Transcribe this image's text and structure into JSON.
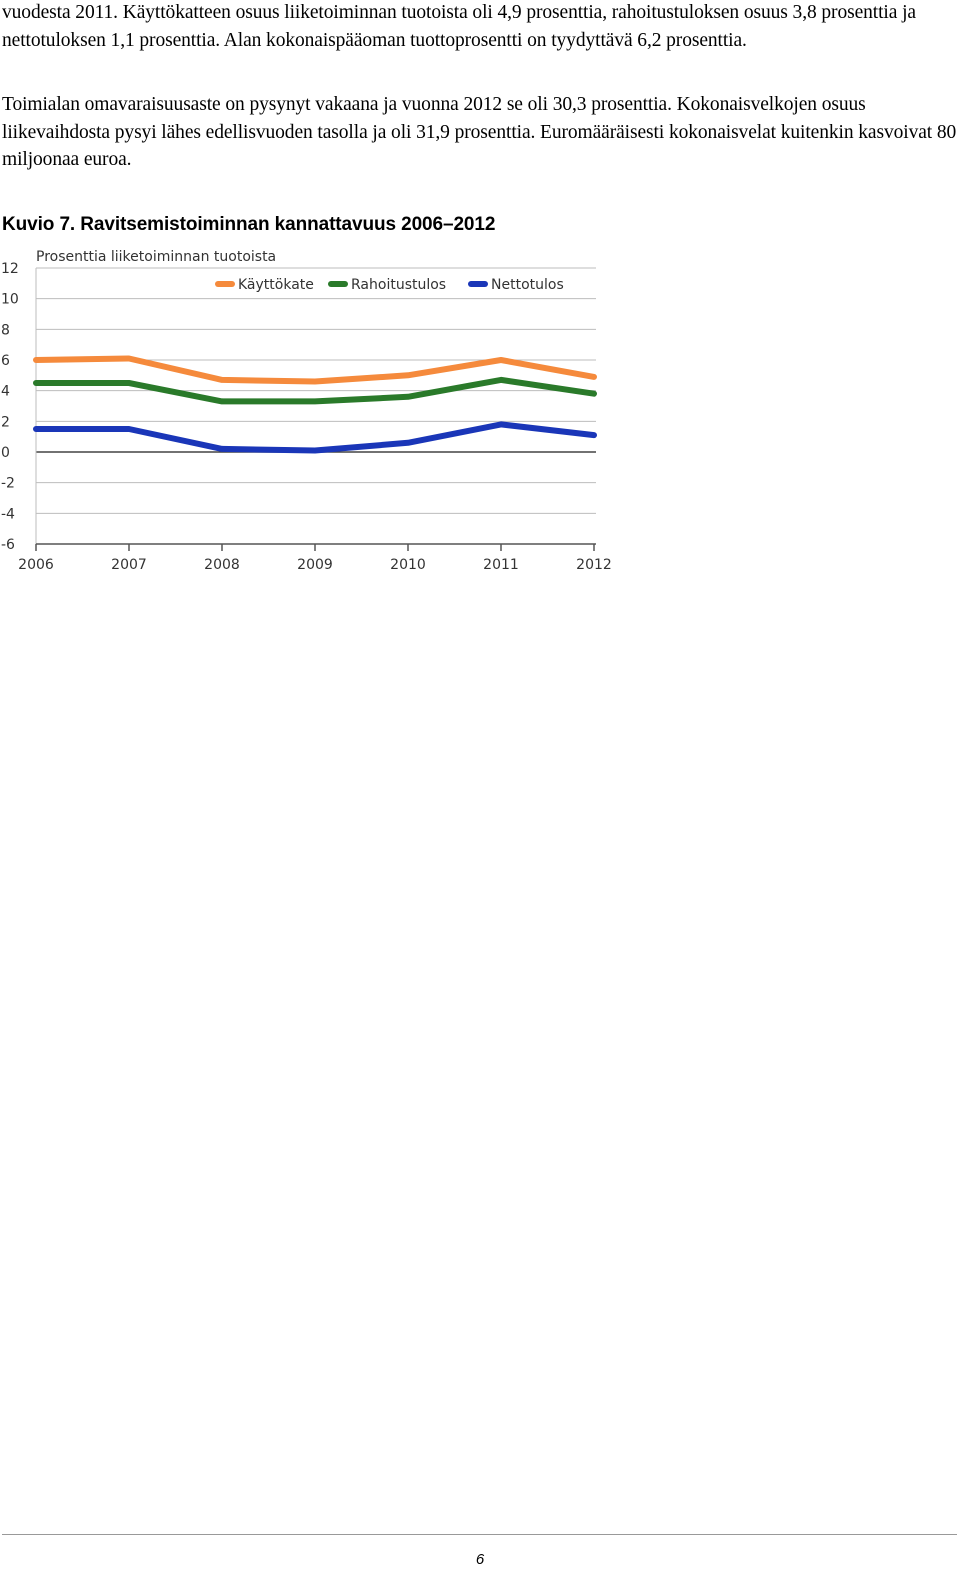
{
  "document": {
    "paragraphs": [
      "vuodesta 2011. Käyttökatteen osuus liiketoiminnan tuotoista oli 4,9 prosenttia, rahoitustuloksen osuus 3,8 prosenttia ja nettotuloksen 1,1 prosenttia. Alan kokonaispääoman tuottoprosentti on tyydyttävä 6,2 prosenttia.",
      "Toimialan omavaraisuusaste on pysynyt vakaana ja vuonna 2012 se oli 30,3 prosenttia. Kokonaisvelkojen osuus liikevaihdosta pysyi lähes edellisvuoden tasolla ja oli 31,9 prosenttia. Euromääräisesti kokonaisvelat kuitenkin kasvoivat 80 miljoonaa euroa."
    ],
    "figure_title": "Kuvio 7. Ravitsemistoiminnan kannattavuus 2006–2012",
    "page_number": "6"
  },
  "chart_data": {
    "type": "line",
    "title": "",
    "ylabel": "Prosenttia liiketoiminnan tuotoista",
    "xlabel": "",
    "x": [
      "2006",
      "2007",
      "2008",
      "2009",
      "2010",
      "2011",
      "2012"
    ],
    "ylim": [
      -6,
      12
    ],
    "yticks": [
      12,
      10,
      8,
      6,
      4,
      2,
      0,
      -2,
      -4,
      -6
    ],
    "grid": true,
    "legend_position": "top",
    "series": [
      {
        "name": "Käyttökate",
        "color": "#f58a3c",
        "values": [
          6.0,
          6.1,
          4.7,
          4.6,
          5.0,
          6.0,
          4.9
        ]
      },
      {
        "name": "Rahoitustulos",
        "color": "#2a7a2a",
        "values": [
          4.5,
          4.5,
          3.3,
          3.3,
          3.6,
          4.7,
          3.8
        ]
      },
      {
        "name": "Nettotulos",
        "color": "#1a36b8",
        "values": [
          1.5,
          1.5,
          0.2,
          0.1,
          0.6,
          1.8,
          1.1
        ]
      }
    ]
  }
}
